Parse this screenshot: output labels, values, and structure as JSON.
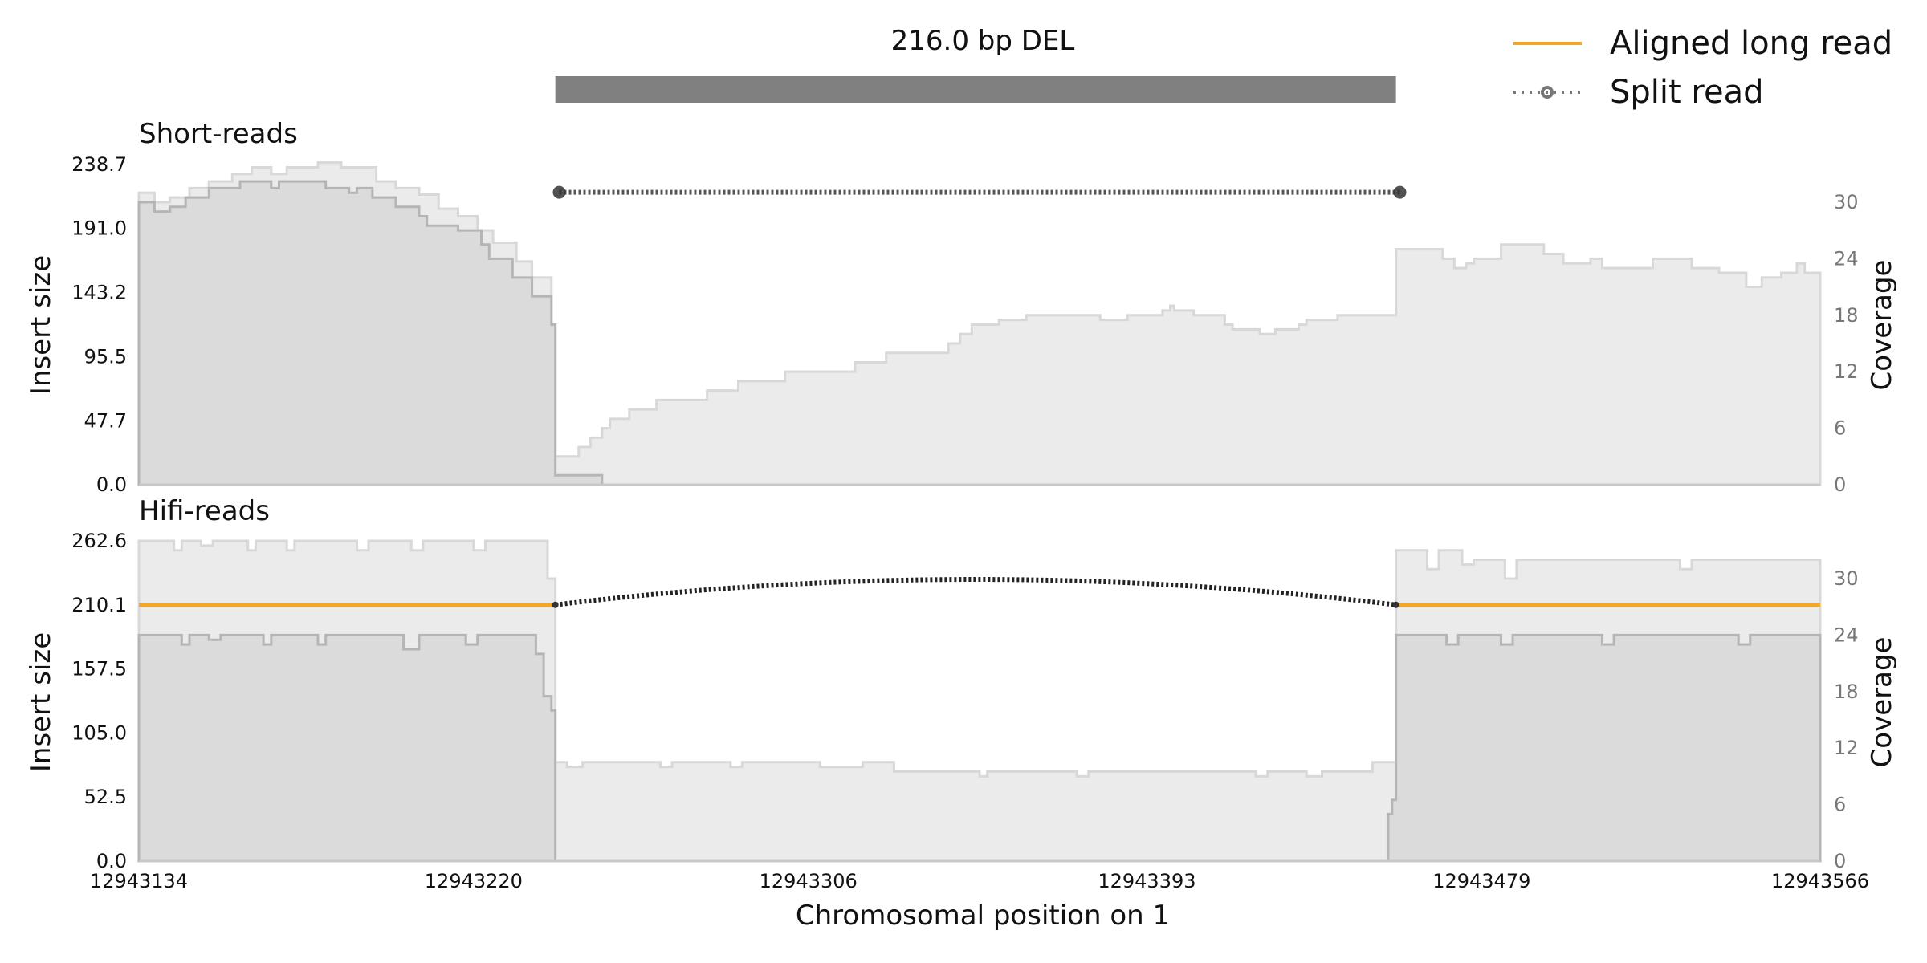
{
  "chart_data": {
    "type": "area",
    "title": "216.0 bp DEL",
    "xlabel": "Chromosomal position on 1",
    "xlim": [
      12943134,
      12943566
    ],
    "x_ticks": [
      "12943134",
      "12943220",
      "12943306",
      "12943393",
      "12943479",
      "12943566"
    ],
    "legend_position": "top-right",
    "legend": [
      {
        "label": "Aligned long read",
        "color": "#f5a623",
        "style": "solid"
      },
      {
        "label": "Split read",
        "color": "#777777",
        "style": "dotted-circle"
      }
    ],
    "deletion": {
      "start": 12943241,
      "end": 12943457
    },
    "panels": [
      {
        "name": "Short-reads",
        "ylabel": "Insert size",
        "y2label": "Coverage",
        "ylim": [
          0,
          238.7
        ],
        "y2lim": [
          0,
          34
        ],
        "y_ticks": [
          "0.0",
          "47.7",
          "95.5",
          "143.2",
          "191.0",
          "238.7"
        ],
        "y2_ticks": [
          "0",
          "6",
          "12",
          "18",
          "24",
          "30"
        ],
        "coverage_total": [
          [
            12943134,
            31.0
          ],
          [
            12943138,
            30.0
          ],
          [
            12943142,
            30.5
          ],
          [
            12943147,
            31.5
          ],
          [
            12943152,
            32.2
          ],
          [
            12943158,
            33.0
          ],
          [
            12943163,
            33.7
          ],
          [
            12943168,
            33.0
          ],
          [
            12943172,
            33.7
          ],
          [
            12943180,
            34.2
          ],
          [
            12943186,
            33.7
          ],
          [
            12943195,
            32.2
          ],
          [
            12943200,
            31.5
          ],
          [
            12943206,
            30.8
          ],
          [
            12943211,
            29.3
          ],
          [
            12943216,
            28.5
          ],
          [
            12943221,
            27.0
          ],
          [
            12943225,
            25.7
          ],
          [
            12943231,
            23.7
          ],
          [
            12943235,
            22.0
          ],
          [
            12943240,
            17.0
          ],
          [
            12943241,
            3.0
          ],
          [
            12943247,
            4.0
          ],
          [
            12943250,
            5.0
          ],
          [
            12943253,
            6.0
          ],
          [
            12943255,
            7.0
          ],
          [
            12943260,
            8.0
          ],
          [
            12943267,
            9.0
          ],
          [
            12943280,
            10.0
          ],
          [
            12943288,
            11.0
          ],
          [
            12943300,
            12.0
          ],
          [
            12943318,
            13.0
          ],
          [
            12943326,
            14.0
          ],
          [
            12943342,
            15.0
          ],
          [
            12943345,
            16.0
          ],
          [
            12943348,
            17.0
          ],
          [
            12943355,
            17.5
          ],
          [
            12943362,
            18.0
          ],
          [
            12943381,
            17.5
          ],
          [
            12943388,
            18.0
          ],
          [
            12943397,
            18.5
          ],
          [
            12943399,
            19.0
          ],
          [
            12943400,
            18.5
          ],
          [
            12943405,
            18.0
          ],
          [
            12943413,
            17.0
          ],
          [
            12943415,
            16.5
          ],
          [
            12943422,
            16.0
          ],
          [
            12943426,
            16.5
          ],
          [
            12943432,
            17.0
          ],
          [
            12943434,
            17.5
          ],
          [
            12943442,
            18.0
          ],
          [
            12943457,
            25.0
          ],
          [
            12943469,
            24.0
          ],
          [
            12943472,
            23.0
          ],
          [
            12943475,
            23.5
          ],
          [
            12943477,
            24.0
          ],
          [
            12943484,
            25.5
          ],
          [
            12943495,
            24.5
          ],
          [
            12943500,
            23.5
          ],
          [
            12943507,
            24.0
          ],
          [
            12943510,
            23.0
          ],
          [
            12943523,
            24.0
          ],
          [
            12943533,
            23.0
          ],
          [
            12943540,
            22.5
          ],
          [
            12943547,
            21.0
          ],
          [
            12943551,
            22.0
          ],
          [
            12943556,
            22.5
          ],
          [
            12943560,
            23.5
          ],
          [
            12943562,
            22.5
          ]
        ],
        "coverage_mapped": [
          [
            12943134,
            30.0
          ],
          [
            12943138,
            29.0
          ],
          [
            12943142,
            29.5
          ],
          [
            12943146,
            30.5
          ],
          [
            12943152,
            31.5
          ],
          [
            12943160,
            32.2
          ],
          [
            12943168,
            31.5
          ],
          [
            12943170,
            32.2
          ],
          [
            12943182,
            31.5
          ],
          [
            12943188,
            31.0
          ],
          [
            12943190,
            31.5
          ],
          [
            12943194,
            30.5
          ],
          [
            12943200,
            29.5
          ],
          [
            12943206,
            28.5
          ],
          [
            12943208,
            27.5
          ],
          [
            12943216,
            27.0
          ],
          [
            12943222,
            25.5
          ],
          [
            12943224,
            24.0
          ],
          [
            12943230,
            22.0
          ],
          [
            12943235,
            20.0
          ],
          [
            12943240,
            17.0
          ],
          [
            12943241,
            1.0
          ],
          [
            12943253,
            0.0
          ]
        ],
        "split_read": {
          "start": 12943242,
          "end": 12943458,
          "insert_size": 218
        }
      },
      {
        "name": "Hifi-reads",
        "ylabel": "Insert size",
        "y2label": "Coverage",
        "ylim": [
          0,
          262.6
        ],
        "y2lim": [
          0,
          34
        ],
        "y_ticks": [
          "0.0",
          "52.5",
          "105.0",
          "157.5",
          "210.1",
          "262.6"
        ],
        "y2_ticks": [
          "0",
          "6",
          "12",
          "18",
          "24",
          "30"
        ],
        "coverage_total": [
          [
            12943134,
            34.0
          ],
          [
            12943143,
            33.0
          ],
          [
            12943145,
            34.0
          ],
          [
            12943150,
            33.5
          ],
          [
            12943153,
            34.0
          ],
          [
            12943162,
            33.0
          ],
          [
            12943164,
            34.0
          ],
          [
            12943172,
            33.0
          ],
          [
            12943174,
            34.0
          ],
          [
            12943190,
            33.0
          ],
          [
            12943193,
            34.0
          ],
          [
            12943204,
            33.0
          ],
          [
            12943207,
            34.0
          ],
          [
            12943220,
            33.0
          ],
          [
            12943223,
            34.0
          ],
          [
            12943239,
            30.0
          ],
          [
            12943241,
            10.5
          ],
          [
            12943244,
            10.0
          ],
          [
            12943248,
            10.5
          ],
          [
            12943268,
            10.0
          ],
          [
            12943271,
            10.5
          ],
          [
            12943286,
            10.0
          ],
          [
            12943289,
            10.5
          ],
          [
            12943309,
            10.0
          ],
          [
            12943320,
            10.5
          ],
          [
            12943328,
            9.5
          ],
          [
            12943343,
            9.5
          ],
          [
            12943350,
            9.0
          ],
          [
            12943352,
            9.5
          ],
          [
            12943375,
            9.0
          ],
          [
            12943378,
            9.5
          ],
          [
            12943421,
            9.0
          ],
          [
            12943424,
            9.5
          ],
          [
            12943434,
            9.0
          ],
          [
            12943438,
            9.5
          ],
          [
            12943451,
            10.5
          ],
          [
            12943457,
            33.0
          ],
          [
            12943465,
            31.0
          ],
          [
            12943468,
            33.0
          ],
          [
            12943474,
            31.5
          ],
          [
            12943477,
            32.0
          ],
          [
            12943485,
            30.0
          ],
          [
            12943488,
            32.0
          ],
          [
            12943530,
            31.0
          ],
          [
            12943533,
            32.0
          ],
          [
            12943566,
            32.0
          ]
        ],
        "coverage_mapped": [
          [
            12943134,
            24.0
          ],
          [
            12943145,
            23.0
          ],
          [
            12943147,
            24.0
          ],
          [
            12943152,
            23.5
          ],
          [
            12943155,
            24.0
          ],
          [
            12943166,
            23.0
          ],
          [
            12943168,
            24.0
          ],
          [
            12943180,
            23.0
          ],
          [
            12943182,
            24.0
          ],
          [
            12943202,
            22.5
          ],
          [
            12943206,
            24.0
          ],
          [
            12943218,
            23.0
          ],
          [
            12943221,
            24.0
          ],
          [
            12943236,
            22.0
          ],
          [
            12943238,
            17.5
          ],
          [
            12943240,
            16.0
          ],
          [
            12943241,
            0.0
          ],
          [
            12943455,
            5.0
          ],
          [
            12943456,
            6.5
          ],
          [
            12943457,
            24.0
          ],
          [
            12943470,
            23.0
          ],
          [
            12943473,
            24.0
          ],
          [
            12943484,
            23.0
          ],
          [
            12943487,
            24.0
          ],
          [
            12943510,
            23.0
          ],
          [
            12943513,
            24.0
          ],
          [
            12943545,
            23.0
          ],
          [
            12943548,
            24.0
          ],
          [
            12943566,
            24.0
          ]
        ],
        "aligned_long_read_insert_size": 210.1,
        "split_read": {
          "start": 12943241,
          "end": 12943457,
          "insert_size": 210.1,
          "arc_peak": 231
        }
      }
    ]
  }
}
